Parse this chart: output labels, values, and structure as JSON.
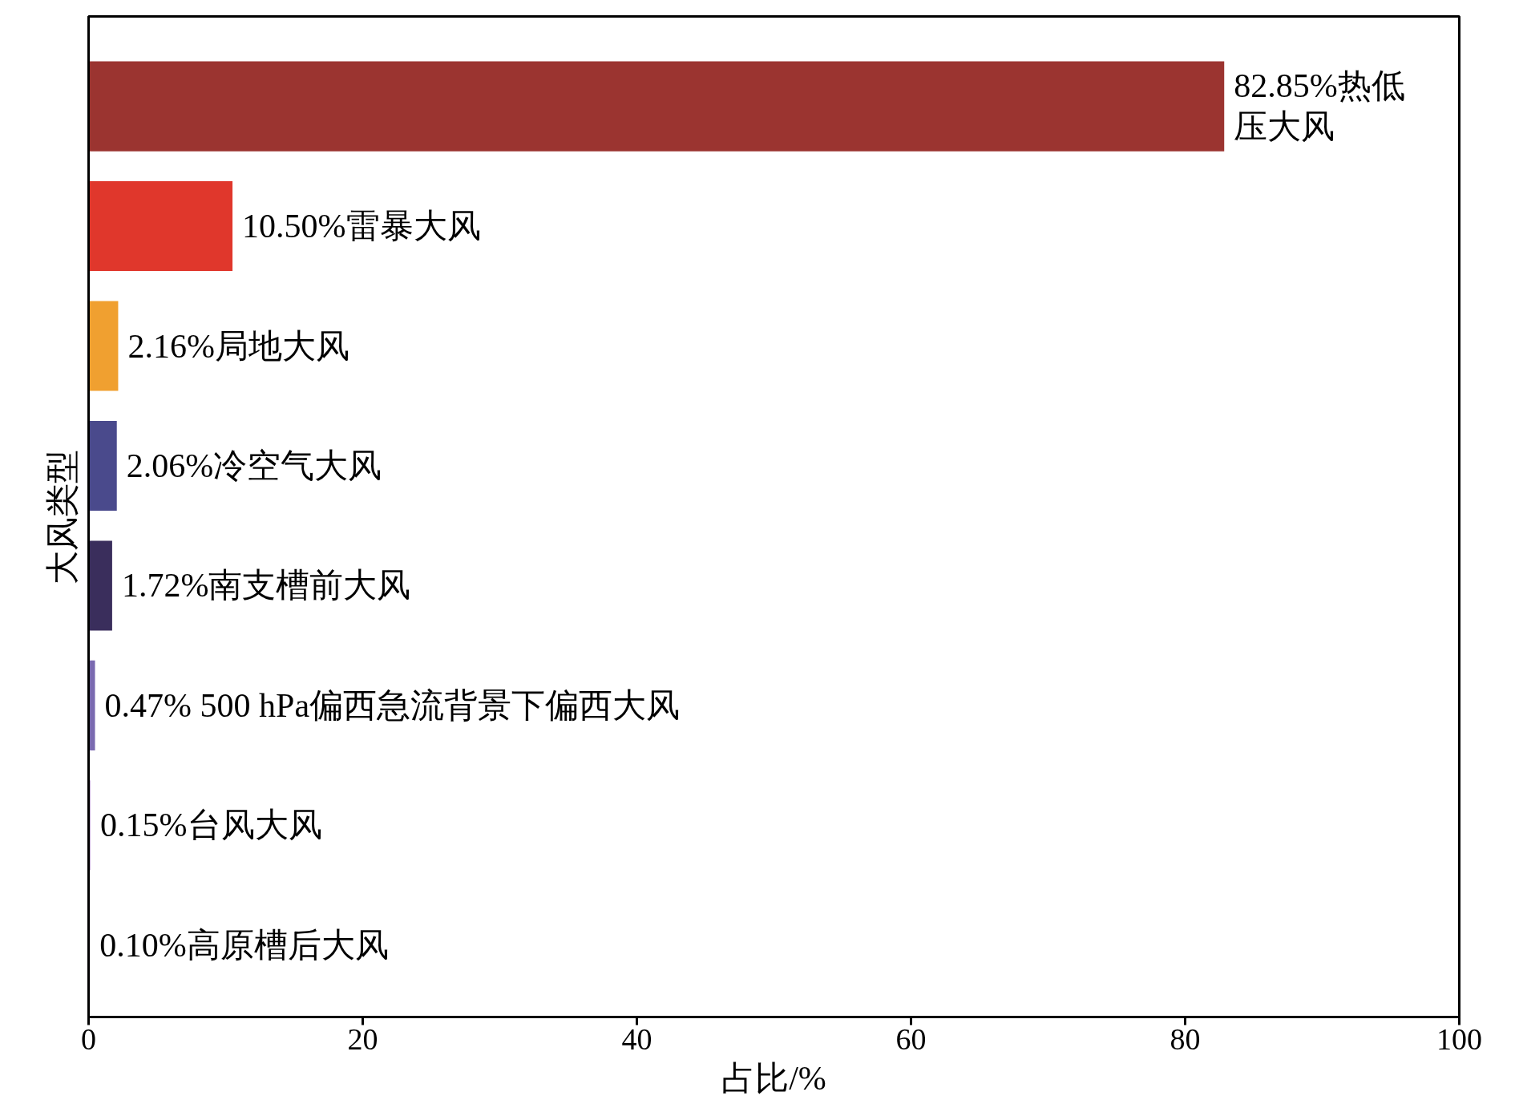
{
  "chart_data": {
    "type": "bar",
    "orientation": "horizontal",
    "xlabel": "占比/%",
    "ylabel": "大风类型",
    "categories": [
      null,
      null,
      null,
      null,
      null,
      null,
      null,
      null
    ],
    "values": [
      82.85,
      10.5,
      2.16,
      2.06,
      1.72,
      0.47,
      0.15,
      0.1
    ],
    "colors": [
      "#9b3430",
      "#e0372c",
      "#f0a030",
      "#4a4a8c",
      "#3a2e5c",
      "#7a6ab0",
      "#c8b4d8",
      "#d8c8e0"
    ],
    "value_labels": [
      "82.85%热低压大风",
      "10.50%雷暴大风",
      "2.16%局地大风",
      "2.06%冷空气大风",
      "1.72%南支槽前大风",
      "0.47% 500 hPa偏西急流背景下偏西大风",
      "0.15%台风大风",
      "0.10%高原槽后大风"
    ],
    "xlim": [
      0,
      100
    ],
    "xticks": [
      0,
      20,
      40,
      60,
      80,
      100
    ],
    "tick_labels": "x",
    "grid": false
  }
}
